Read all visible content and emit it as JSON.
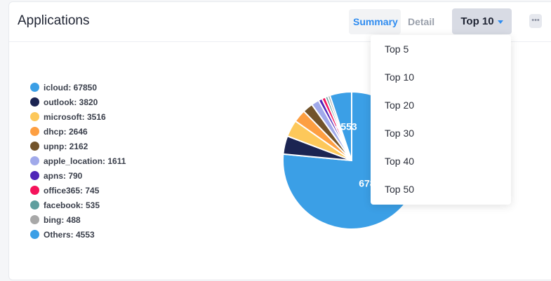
{
  "header": {
    "title": "Applications",
    "tabs": [
      {
        "label": "Summary",
        "active": true
      },
      {
        "label": "Detail",
        "active": false
      }
    ],
    "top_select": "Top 10",
    "more_icon": "ellipsis-icon"
  },
  "dropdown": {
    "options": [
      "Top 5",
      "Top 10",
      "Top 20",
      "Top 30",
      "Top 40",
      "Top 50"
    ]
  },
  "chart_data": {
    "type": "pie",
    "start": "top",
    "direction": "clockwise",
    "slices": [
      {
        "name": "icloud",
        "value": 67850,
        "color": "#3b9fe6",
        "legend": "icloud: 67850",
        "label": "67850"
      },
      {
        "name": "outlook",
        "value": 3820,
        "color": "#1b2452",
        "legend": "outlook: 3820"
      },
      {
        "name": "microsoft",
        "value": 3516,
        "color": "#fdc85a",
        "legend": "microsoft: 3516"
      },
      {
        "name": "dhcp",
        "value": 2646,
        "color": "#fd9f42",
        "legend": "dhcp: 2646"
      },
      {
        "name": "upnp",
        "value": 2162,
        "color": "#72532a",
        "legend": "upnp: 2162"
      },
      {
        "name": "apple_location",
        "value": 1611,
        "color": "#a0a9ea",
        "legend": "apple_location: 1611"
      },
      {
        "name": "apns",
        "value": 790,
        "color": "#4f25b8",
        "legend": "apns: 790"
      },
      {
        "name": "office365",
        "value": 745,
        "color": "#f5135b",
        "legend": "office365: 745"
      },
      {
        "name": "facebook",
        "value": 535,
        "color": "#5f9e9e",
        "legend": "facebook: 535"
      },
      {
        "name": "bing",
        "value": 488,
        "color": "#a8a8a8",
        "legend": "bing: 488"
      },
      {
        "name": "Others",
        "value": 4553,
        "color": "#3b9fe6",
        "legend": "Others: 4553",
        "label": "4553"
      }
    ]
  }
}
